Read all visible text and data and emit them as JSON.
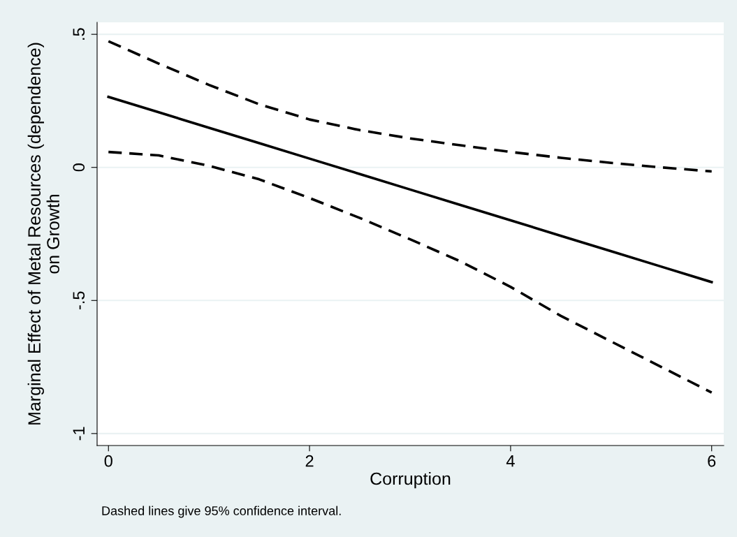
{
  "chart_data": {
    "type": "line",
    "xlabel": "Corruption",
    "ylabel": "Marginal Effect of Metal Resources (dependence)\non Growth",
    "annotations": [
      "Dashed lines give 95% confidence interval."
    ],
    "x": [
      0,
      0.5,
      1,
      1.5,
      2,
      2.5,
      3,
      3.5,
      4,
      4.5,
      5,
      5.5,
      6
    ],
    "series": [
      {
        "color": "#000000",
        "line_style": "solid",
        "values": [
          0.265,
          0.207,
          0.149,
          0.091,
          0.033,
          -0.025,
          -0.083,
          -0.141,
          -0.199,
          -0.257,
          -0.315,
          -0.373,
          -0.431
        ]
      },
      {
        "color": "#000000",
        "line_style": "dashed",
        "values": [
          0.474,
          0.39,
          0.31,
          0.237,
          0.18,
          0.14,
          0.109,
          0.083,
          0.058,
          0.036,
          0.017,
          0.0,
          -0.015
        ]
      },
      {
        "color": "#000000",
        "line_style": "dashed",
        "values": [
          0.058,
          0.045,
          0.006,
          -0.045,
          -0.115,
          -0.19,
          -0.27,
          -0.353,
          -0.449,
          -0.558,
          -0.654,
          -0.75,
          -0.846
        ]
      }
    ],
    "xlim": [
      -0.113,
      6.12
    ],
    "ylim": [
      -1.045,
      0.545
    ],
    "xticks": [
      0,
      2,
      4,
      6
    ],
    "yticks": [
      {
        "value": -1,
        "label": "-1"
      },
      {
        "value": -0.5,
        "label": "-.5"
      },
      {
        "value": 0,
        "label": "0"
      },
      {
        "value": 0.5,
        "label": ".5"
      }
    ],
    "grid": "y",
    "marker": "none"
  }
}
